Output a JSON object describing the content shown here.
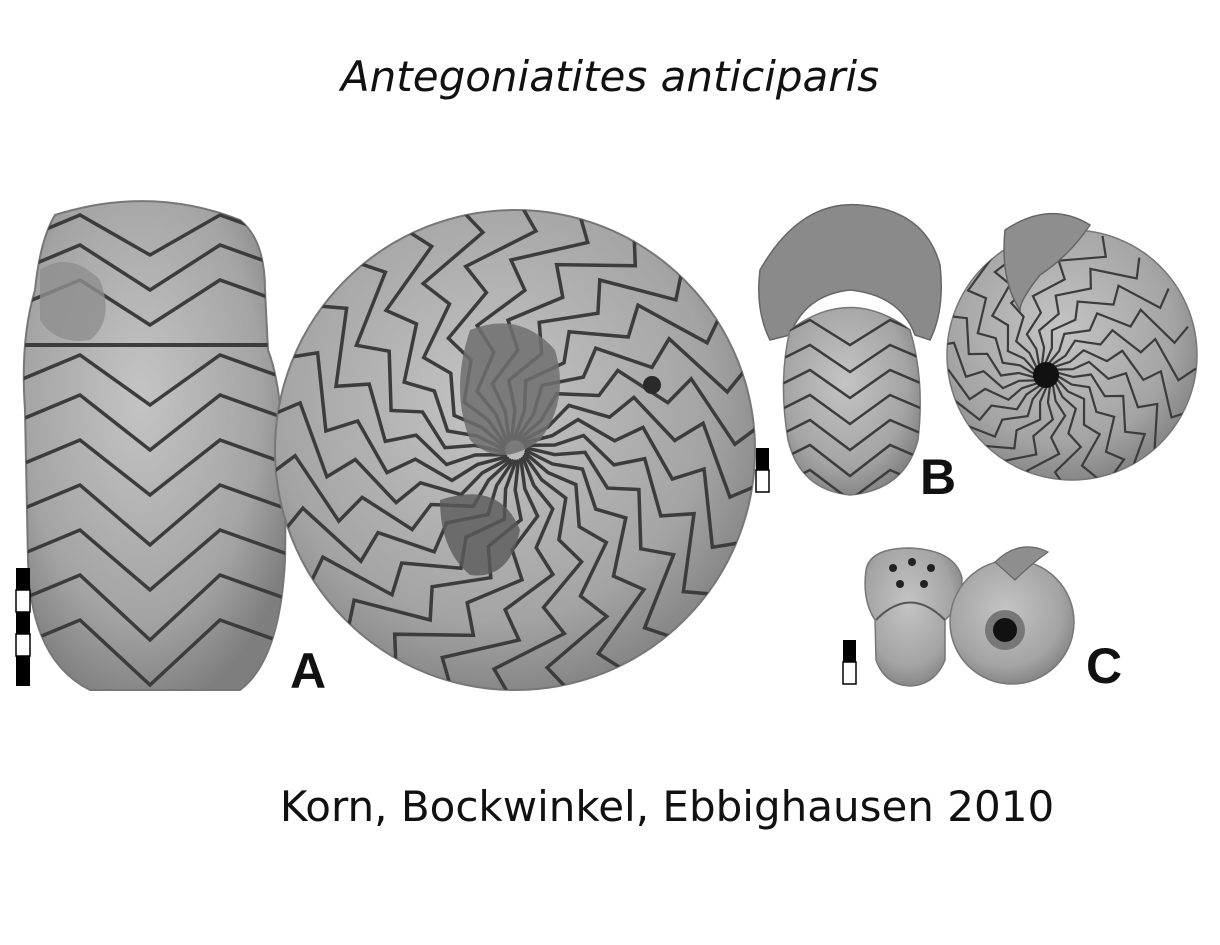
{
  "title": "Antegoniatites anticiparis",
  "credit": "Korn, Bockwinkel, Ebbighausen 2010",
  "panels": {
    "a": "A",
    "b": "B",
    "c": "C"
  },
  "colors": {
    "fossil_fill": "#a9a9a9",
    "suture_line": "#3c3c3c",
    "background": "#ffffff"
  }
}
